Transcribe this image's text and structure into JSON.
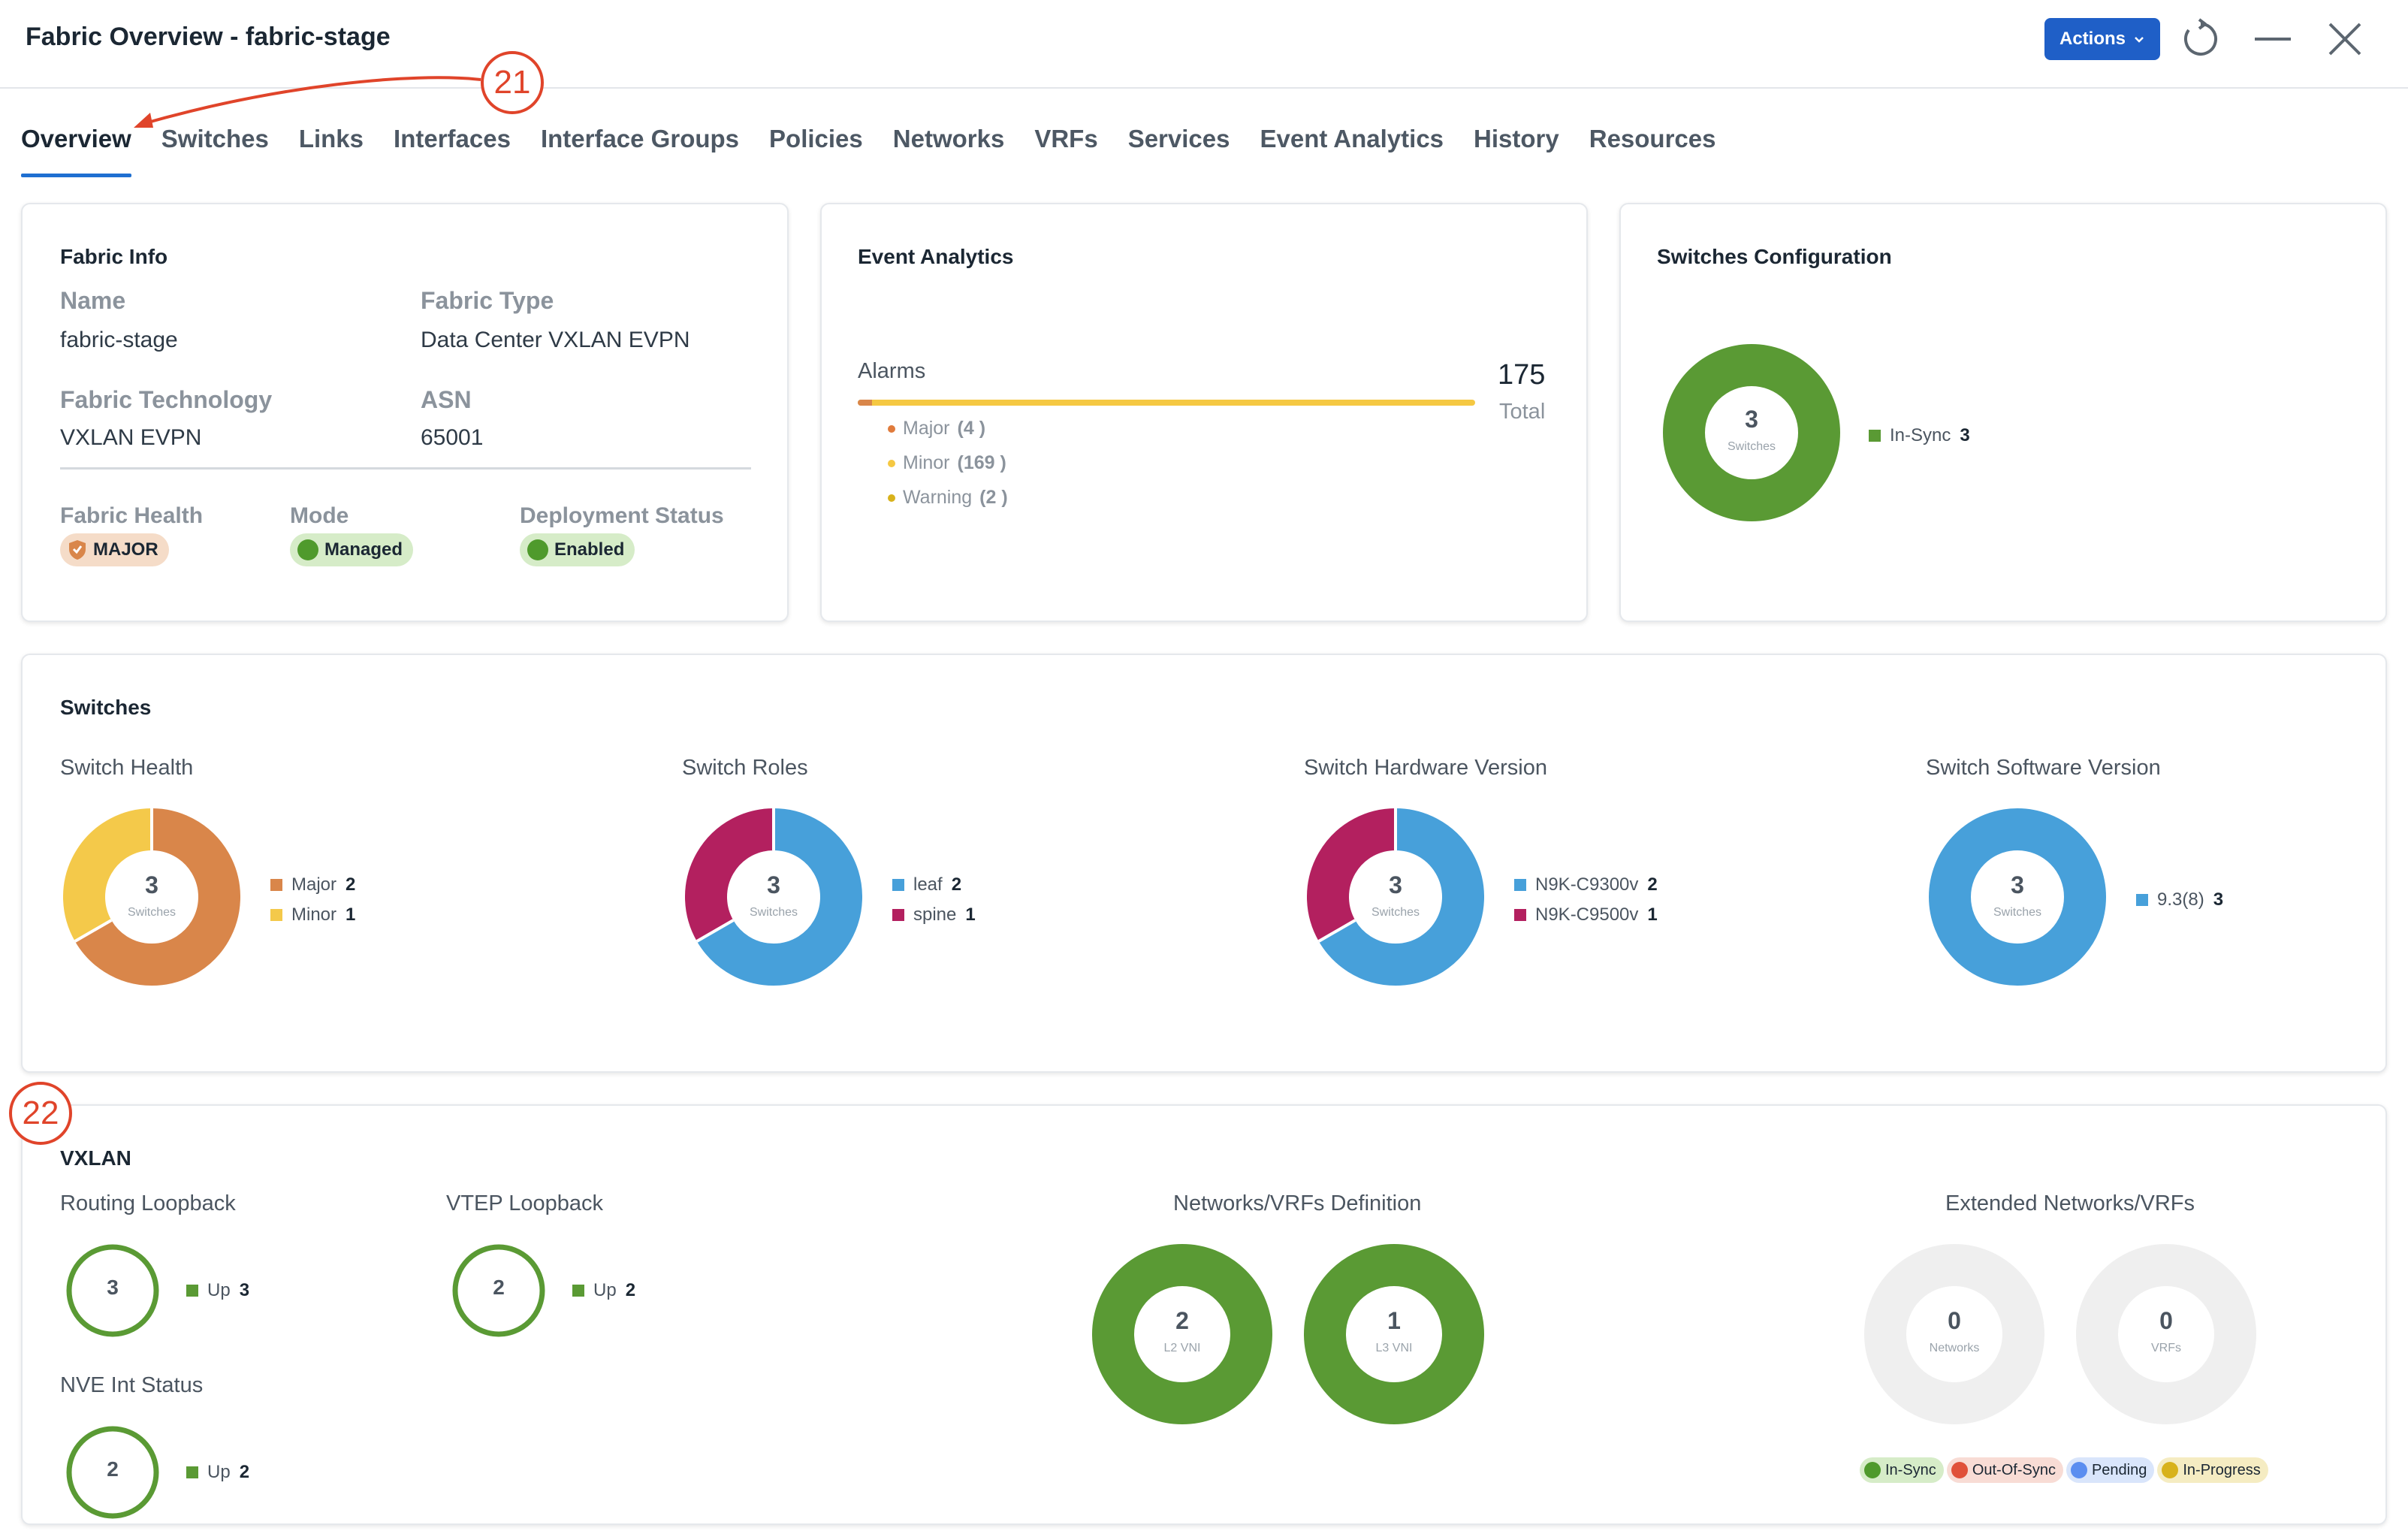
{
  "header": {
    "title": "Fabric Overview - fabric-stage",
    "actions_label": "Actions"
  },
  "tabs": [
    "Overview",
    "Switches",
    "Links",
    "Interfaces",
    "Interface Groups",
    "Policies",
    "Networks",
    "VRFs",
    "Services",
    "Event Analytics",
    "History",
    "Resources"
  ],
  "callouts": {
    "a": "21",
    "b": "22"
  },
  "fabric_info": {
    "title": "Fabric Info",
    "name_label": "Name",
    "name_value": "fabric-stage",
    "type_label": "Fabric Type",
    "type_value": "Data Center VXLAN EVPN",
    "tech_label": "Fabric Technology",
    "tech_value": "VXLAN EVPN",
    "asn_label": "ASN",
    "asn_value": "65001",
    "health_label": "Fabric Health",
    "health_value": "MAJOR",
    "mode_label": "Mode",
    "mode_value": "Managed",
    "deploy_label": "Deployment Status",
    "deploy_value": "Enabled"
  },
  "event_analytics": {
    "title": "Event Analytics",
    "alarms_label": "Alarms",
    "total_value": "175",
    "total_label": "Total",
    "major_fraction": 0.0229,
    "items": [
      {
        "label": "Major",
        "count": "(4 )",
        "color": "#e07b3c"
      },
      {
        "label": "Minor",
        "count": "(169 )",
        "color": "#f5c842"
      },
      {
        "label": "Warning",
        "count": "(2 )",
        "color": "#d8b21b"
      }
    ]
  },
  "switches_config": {
    "title": "Switches Configuration",
    "center_value": "3",
    "center_label": "Switches",
    "legend_label": "In-Sync",
    "legend_value": "3",
    "color": "#5a9a34"
  },
  "switches": {
    "title": "Switches",
    "health": {
      "title": "Switch Health",
      "center": "3",
      "center_label": "Switches",
      "legend": [
        {
          "label": "Major",
          "value": "2",
          "color": "#d9864a"
        },
        {
          "label": "Minor",
          "value": "1",
          "color": "#f4c94a"
        }
      ]
    },
    "roles": {
      "title": "Switch Roles",
      "center": "3",
      "center_label": "Switches",
      "legend": [
        {
          "label": "leaf",
          "value": "2",
          "color": "#47a0da"
        },
        {
          "label": "spine",
          "value": "1",
          "color": "#b3205f"
        }
      ]
    },
    "hardware": {
      "title": "Switch Hardware Version",
      "center": "3",
      "center_label": "Switches",
      "legend": [
        {
          "label": "N9K-C9300v",
          "value": "2",
          "color": "#47a0da"
        },
        {
          "label": "N9K-C9500v",
          "value": "1",
          "color": "#b3205f"
        }
      ]
    },
    "software": {
      "title": "Switch Software Version",
      "center": "3",
      "center_label": "Switches",
      "legend": [
        {
          "label": "9.3(8)",
          "value": "3",
          "color": "#47a0da"
        }
      ]
    }
  },
  "vxlan": {
    "title": "VXLAN",
    "routing_loopback": {
      "title": "Routing Loopback",
      "center": "3",
      "legend_label": "Up",
      "legend_value": "3"
    },
    "vtep_loopback": {
      "title": "VTEP Loopback",
      "center": "2",
      "legend_label": "Up",
      "legend_value": "2"
    },
    "nve_status": {
      "title": "NVE Int Status",
      "center": "2",
      "legend_label": "Up",
      "legend_value": "2"
    },
    "networks_vrfs": {
      "title": "Networks/VRFs Definition",
      "items": [
        {
          "value": "2",
          "label": "L2 VNI"
        },
        {
          "value": "1",
          "label": "L3 VNI"
        }
      ]
    },
    "extended": {
      "title": "Extended Networks/VRFs",
      "items": [
        {
          "value": "0",
          "label": "Networks"
        },
        {
          "value": "0",
          "label": "VRFs"
        }
      ],
      "status_legend": [
        {
          "label": "In-Sync",
          "dot": "#4f9a2c",
          "bg": "#d6ecc8"
        },
        {
          "label": "Out-Of-Sync",
          "dot": "#e0513a",
          "bg": "#f8dcd5"
        },
        {
          "label": "Pending",
          "dot": "#5b8ef0",
          "bg": "#d9e5fb"
        },
        {
          "label": "In-Progress",
          "dot": "#d8b21b",
          "bg": "#f5ecc2"
        }
      ]
    }
  }
}
